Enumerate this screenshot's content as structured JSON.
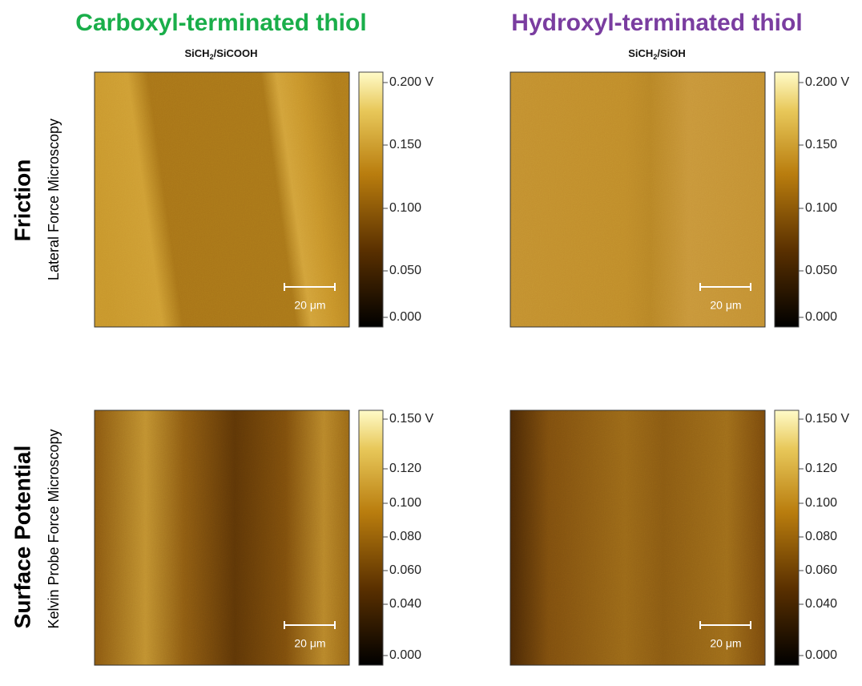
{
  "columns": [
    {
      "title": "Carboxyl-terminated thiol",
      "subtitle": {
        "base": "SiCH",
        "sub": "2",
        "rest": "/SiCOOH"
      }
    },
    {
      "title": "Hydroxyl-terminated thiol",
      "subtitle": {
        "base": "SiCH",
        "sub": "2",
        "rest": "/SiOH"
      }
    }
  ],
  "rows": [
    {
      "title": "Friction",
      "subtitle": "Lateral Force Microscopy",
      "colorbar_labels": [
        "0.200 V",
        "0.150",
        "0.100",
        "0.050",
        "0.000"
      ]
    },
    {
      "title": "Surface Potential",
      "subtitle": "Kelvin Probe Force Microscopy",
      "colorbar_labels": [
        "0.150 V",
        "0.120",
        "0.100",
        "0.080",
        "0.060",
        "0.040",
        "0.000"
      ]
    }
  ],
  "scale_bar": "20 μm"
}
